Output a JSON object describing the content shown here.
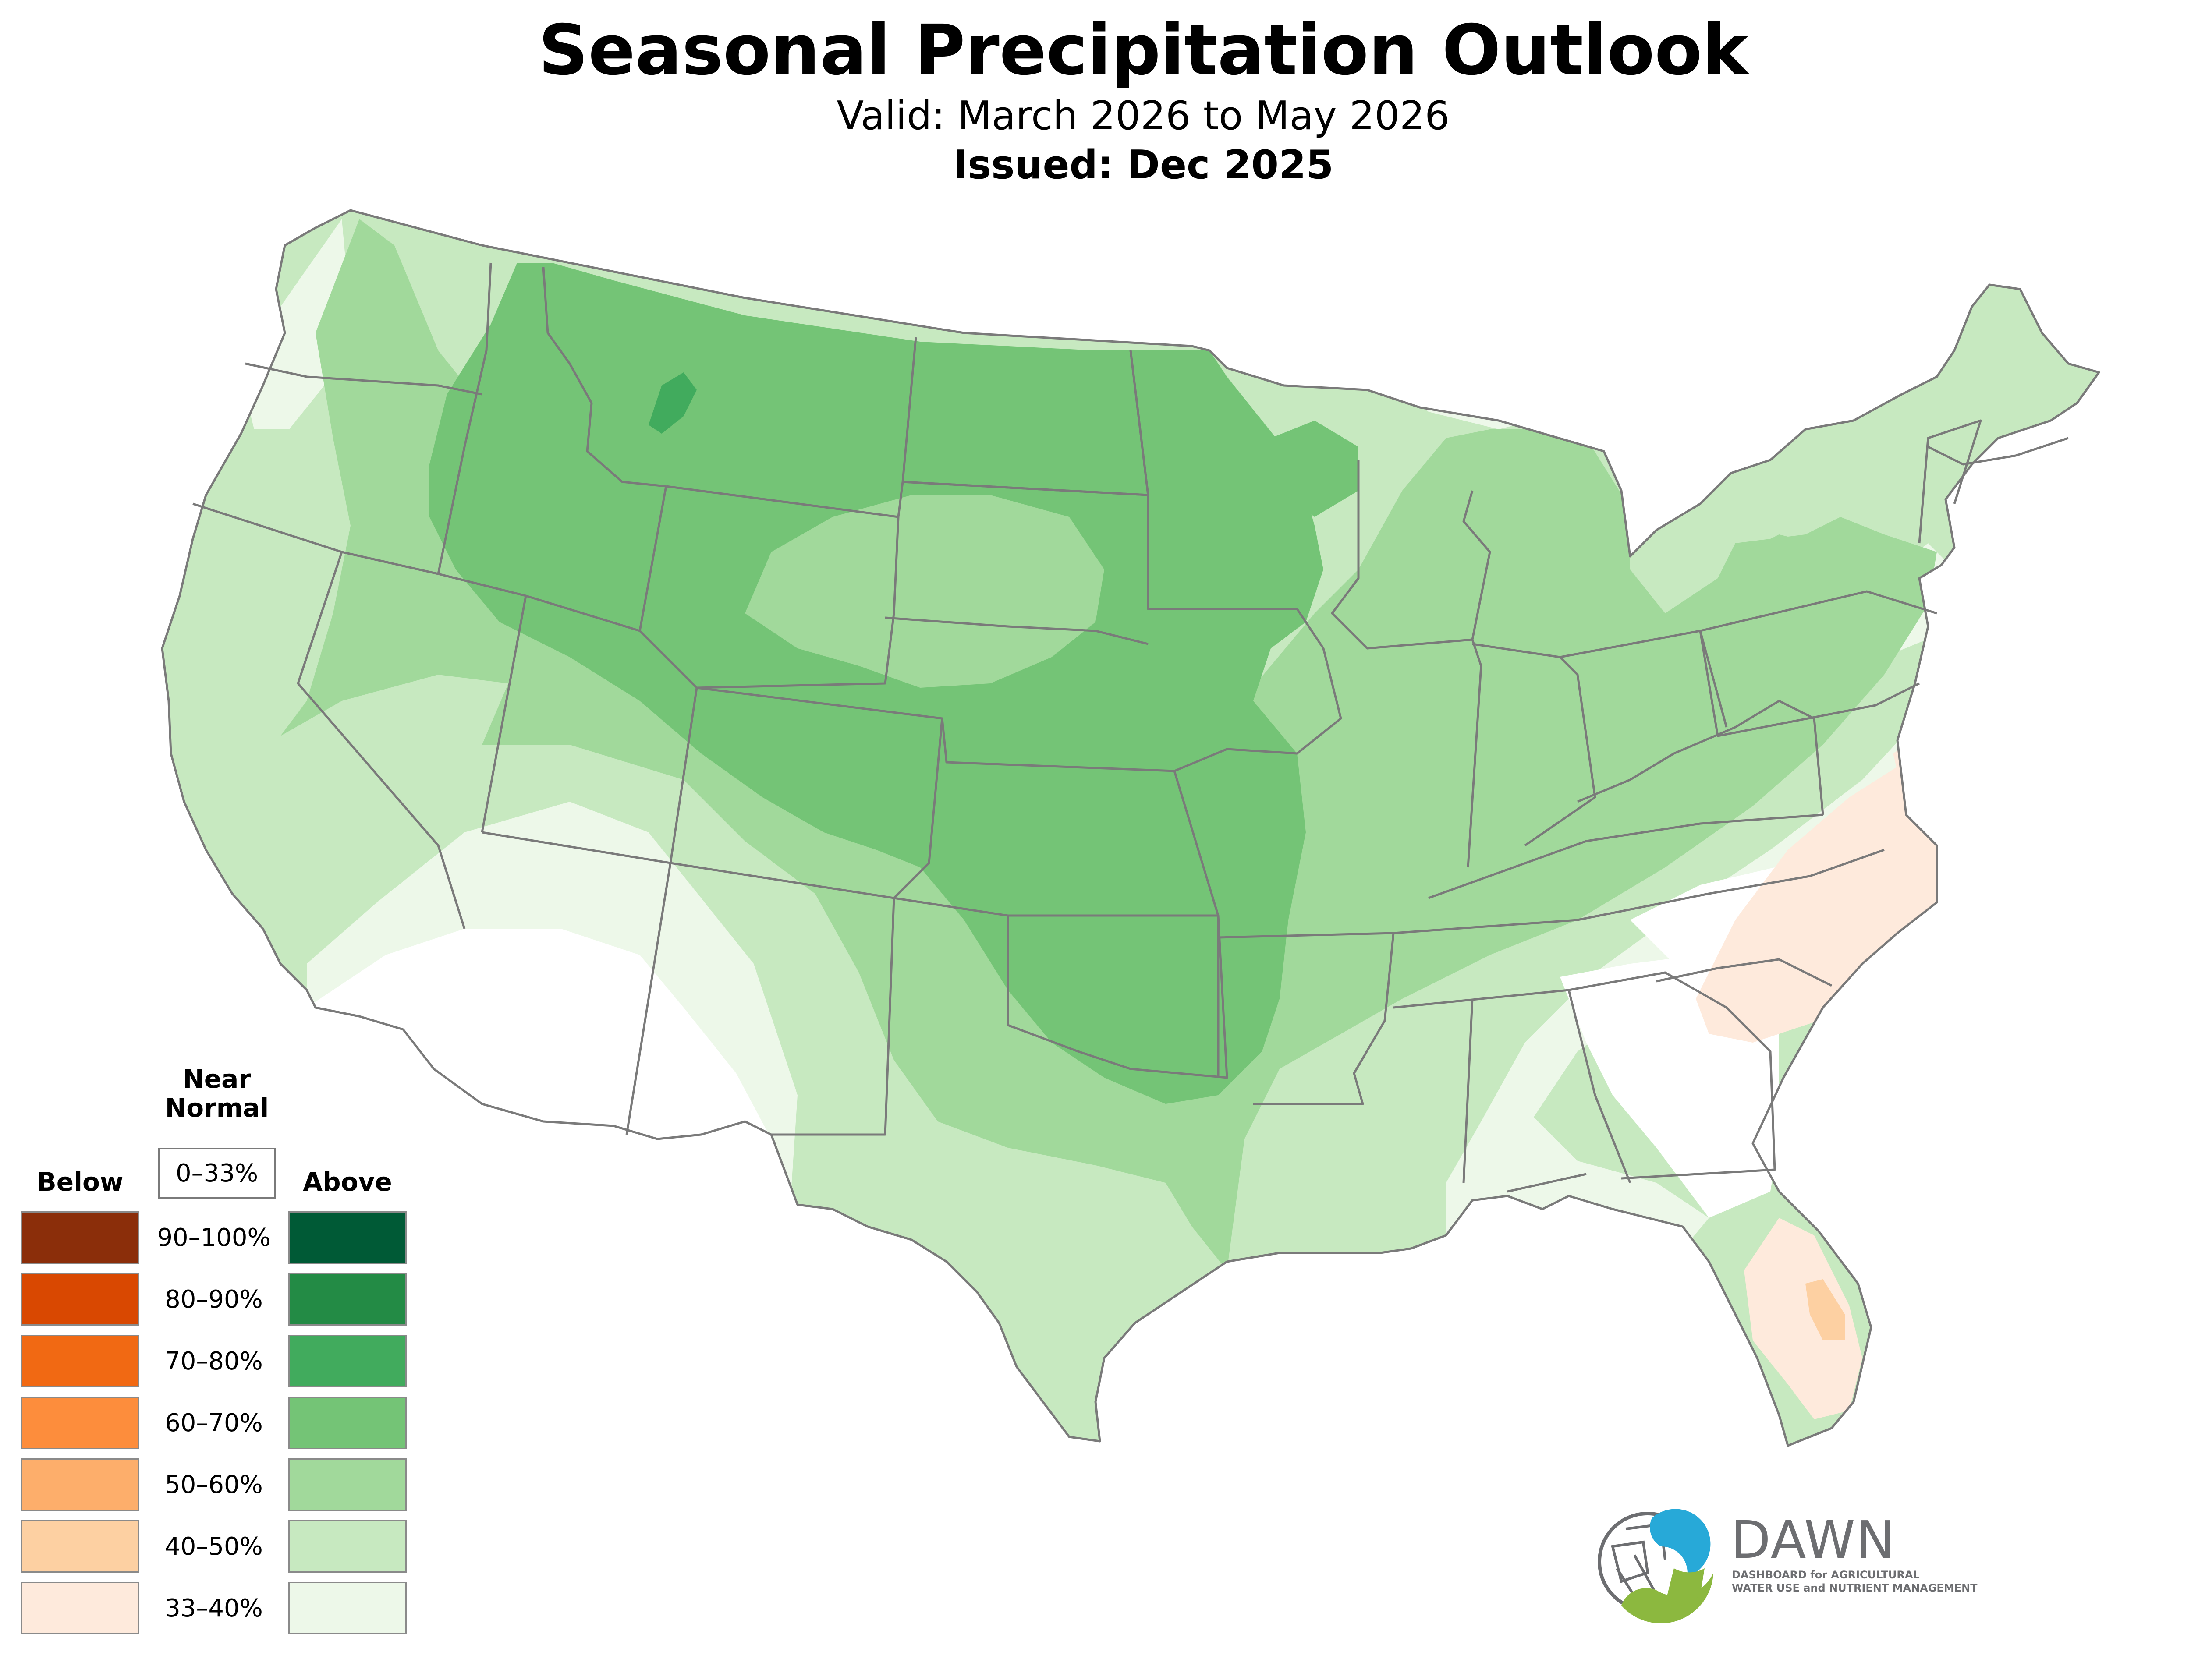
{
  "header": {
    "title": "Seasonal Precipitation Outlook",
    "valid": "Valid: March 2026 to May 2026",
    "issued": "Issued: Dec 2025"
  },
  "legend": {
    "below_label": "Below",
    "near_label_line1": "Near",
    "near_label_line2": "Normal",
    "near_range": "0–33%",
    "above_label": "Above",
    "rows": [
      {
        "range": "90–100%",
        "below_color": "#8b2e0a",
        "above_color": "#005a36"
      },
      {
        "range": "80–90%",
        "below_color": "#d94801",
        "above_color": "#238b45"
      },
      {
        "range": "70–80%",
        "below_color": "#f16913",
        "above_color": "#41ab5d"
      },
      {
        "range": "60–70%",
        "below_color": "#fd8d3c",
        "above_color": "#74c476"
      },
      {
        "range": "50–60%",
        "below_color": "#fdae6b",
        "above_color": "#a1d99b"
      },
      {
        "range": "40–50%",
        "below_color": "#fdd0a2",
        "above_color": "#c7e9c0"
      },
      {
        "range": "33–40%",
        "below_color": "#feeadc",
        "above_color": "#edf8e9"
      }
    ]
  },
  "map": {
    "region": "Contiguous United States",
    "outlook_zones": [
      {
        "category": "above",
        "range": "33–40%",
        "color": "#edf8e9"
      },
      {
        "category": "above",
        "range": "40–50%",
        "color": "#c7e9c0"
      },
      {
        "category": "above",
        "range": "50–60%",
        "color": "#a1d99b"
      },
      {
        "category": "above",
        "range": "60–70%",
        "color": "#74c476"
      },
      {
        "category": "above",
        "range": "70–80%",
        "color": "#41ab5d"
      },
      {
        "category": "below",
        "range": "33–40%",
        "color": "#feeadc"
      },
      {
        "category": "below",
        "range": "40–50%",
        "color": "#fdd0a2"
      }
    ],
    "state_border_color": "#7a7a7a"
  },
  "logo": {
    "name": "DAWN",
    "tagline_line1": "DASHBOARD for AGRICULTURAL",
    "tagline_line2": "WATER USE and NUTRIENT MANAGEMENT"
  }
}
